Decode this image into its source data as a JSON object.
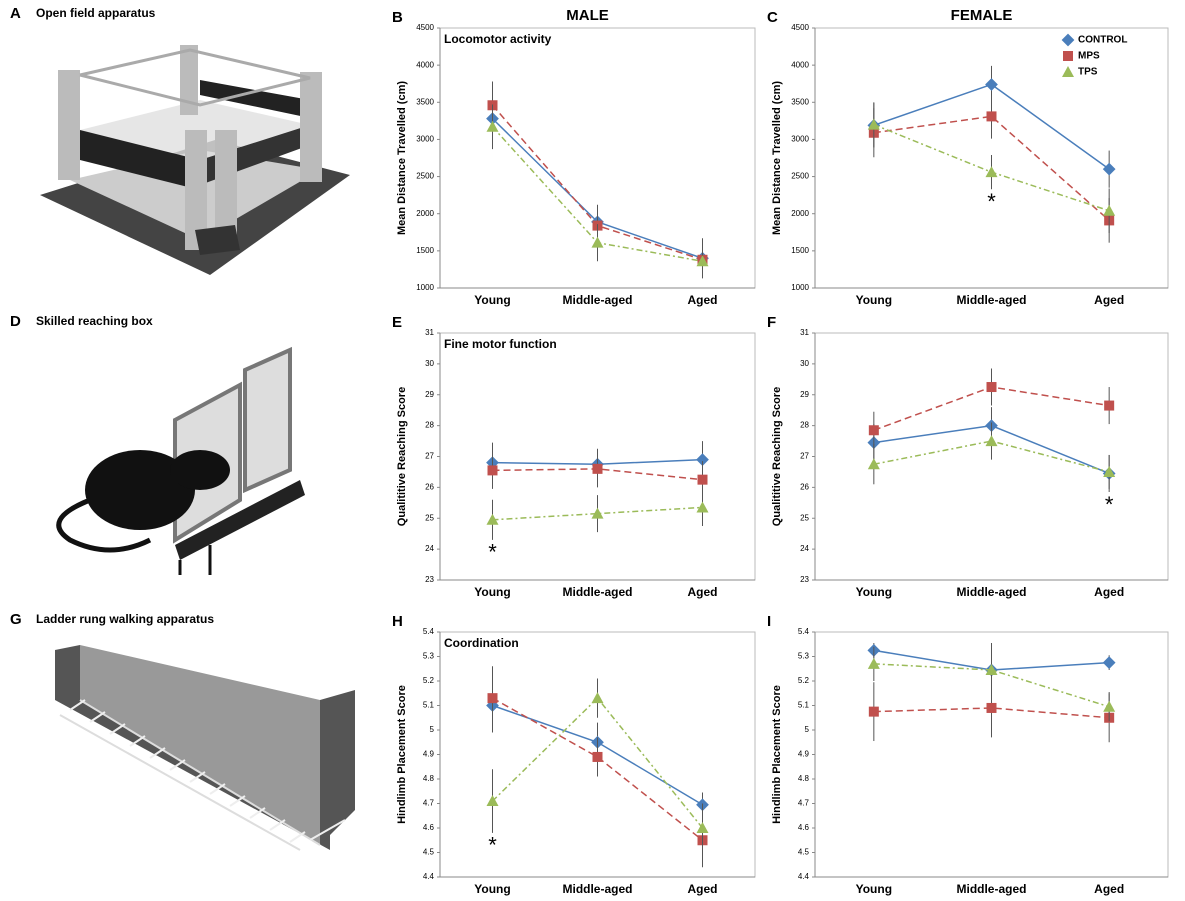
{
  "illustrations": [
    {
      "label": "A",
      "title": "Open field  apparatus"
    },
    {
      "label": "D",
      "title": "Skilled reaching box"
    },
    {
      "label": "G",
      "title": "Ladder rung walking apparatus"
    }
  ],
  "chart_data": [
    {
      "type": "line",
      "panel_label": "B",
      "column_title": "MALE",
      "title": "Locomotor activity",
      "y_label": "Mean  Distance Travelled  (cm)",
      "categories": [
        "Young",
        "Middle-aged",
        "Aged"
      ],
      "ylim": [
        1000,
        4500
      ],
      "yticks": [
        1000,
        1500,
        2000,
        2500,
        3000,
        3500,
        4000,
        4500
      ],
      "series": [
        {
          "color": "#4a7ebb",
          "line_style": "solid",
          "values": [
            3280,
            1890,
            1400
          ],
          "errors": [
            300,
            230,
            270
          ]
        },
        {
          "color": "#c0504d",
          "line_style": "dashed",
          "values": [
            3460,
            1840,
            1380
          ],
          "errors": [
            320,
            240,
            200
          ]
        },
        {
          "color": "#9bbb59",
          "line_style": "dashdot",
          "values": [
            3170,
            1610,
            1360
          ],
          "errors": [
            300,
            250,
            190
          ]
        }
      ],
      "annotations": []
    },
    {
      "type": "line",
      "panel_label": "C",
      "column_title": "FEMALE",
      "y_label": "Mean  Distance Travelled  (cm)",
      "categories": [
        "Young",
        "Middle-aged",
        "Aged"
      ],
      "ylim": [
        1000,
        4500
      ],
      "yticks": [
        1000,
        1500,
        2000,
        2500,
        3000,
        3500,
        4000,
        4500
      ],
      "legend": "upper right",
      "series": [
        {
          "name": "CONTROL",
          "color": "#4a7ebb",
          "line_style": "solid",
          "values": [
            3190,
            3740,
            2600
          ],
          "errors": [
            300,
            250,
            250
          ]
        },
        {
          "name": "MPS",
          "color": "#c0504d",
          "line_style": "dashed",
          "values": [
            3090,
            3310,
            1910
          ],
          "errors": [
            330,
            300,
            300
          ]
        },
        {
          "name": "TPS",
          "color": "#9bbb59",
          "line_style": "dashdot",
          "values": [
            3200,
            2560,
            2040
          ],
          "errors": [
            300,
            230,
            300
          ]
        }
      ],
      "annotations": [
        {
          "text": "*",
          "category": 1
        }
      ]
    },
    {
      "type": "line",
      "panel_label": "E",
      "title": "Fine motor function",
      "y_label": "Qualititive Reaching Score",
      "categories": [
        "Young",
        "Middle-aged",
        "Aged"
      ],
      "ylim": [
        23,
        31
      ],
      "yticks": [
        23,
        24,
        25,
        26,
        27,
        28,
        29,
        30,
        31
      ],
      "series": [
        {
          "color": "#4a7ebb",
          "line_style": "solid",
          "values": [
            26.8,
            26.75,
            26.9
          ],
          "errors": [
            0.65,
            0.5,
            0.6
          ]
        },
        {
          "color": "#c0504d",
          "line_style": "dashed",
          "values": [
            26.55,
            26.6,
            26.25
          ],
          "errors": [
            0.6,
            0.6,
            0.6
          ]
        },
        {
          "color": "#9bbb59",
          "line_style": "dashdot",
          "values": [
            24.95,
            25.15,
            25.35
          ],
          "errors": [
            0.65,
            0.6,
            0.6
          ]
        }
      ],
      "annotations": [
        {
          "text": "*",
          "category": 0
        }
      ]
    },
    {
      "type": "line",
      "panel_label": "F",
      "y_label": "Qualititive Reaching Score",
      "categories": [
        "Young",
        "Middle-aged",
        "Aged"
      ],
      "ylim": [
        23,
        31
      ],
      "yticks": [
        23,
        24,
        25,
        26,
        27,
        28,
        29,
        30,
        31
      ],
      "series": [
        {
          "color": "#4a7ebb",
          "line_style": "solid",
          "values": [
            27.45,
            28.0,
            26.45
          ],
          "errors": [
            0.6,
            0.6,
            0.6
          ]
        },
        {
          "color": "#c0504d",
          "line_style": "dashed",
          "values": [
            27.85,
            29.25,
            28.65
          ],
          "errors": [
            0.6,
            0.6,
            0.6
          ]
        },
        {
          "color": "#9bbb59",
          "line_style": "dashdot",
          "values": [
            26.75,
            27.5,
            26.5
          ],
          "errors": [
            0.65,
            0.6,
            0.55
          ]
        }
      ],
      "annotations": [
        {
          "text": "*",
          "category": 2
        }
      ]
    },
    {
      "type": "line",
      "panel_label": "H",
      "title": "Coordination",
      "y_label": "Hindlimb Placement Score",
      "categories": [
        "Young",
        "Middle-aged",
        "Aged"
      ],
      "ylim": [
        4.4,
        5.4
      ],
      "yticks": [
        4.4,
        4.5,
        4.6,
        4.7,
        4.8,
        4.9,
        5,
        5.1,
        5.2,
        5.3,
        5.4
      ],
      "series": [
        {
          "color": "#4a7ebb",
          "line_style": "solid",
          "values": [
            5.1,
            4.95,
            4.695
          ],
          "errors": [
            0.11,
            0.08,
            0.05
          ]
        },
        {
          "color": "#c0504d",
          "line_style": "dashed",
          "values": [
            5.13,
            4.89,
            4.55
          ],
          "errors": [
            0.13,
            0.08,
            0.11
          ]
        },
        {
          "color": "#9bbb59",
          "line_style": "dashdot",
          "values": [
            4.71,
            5.13,
            4.6
          ],
          "errors": [
            0.13,
            0.08,
            0.1
          ]
        }
      ],
      "annotations": [
        {
          "text": "*",
          "category": 0
        }
      ]
    },
    {
      "type": "line",
      "panel_label": "I",
      "y_label": "Hindlimb Placement Score",
      "categories": [
        "Young",
        "Middle-aged",
        "Aged"
      ],
      "ylim": [
        4.4,
        5.4
      ],
      "yticks": [
        4.4,
        4.5,
        4.6,
        4.7,
        4.8,
        4.9,
        5,
        5.1,
        5.2,
        5.3,
        5.4
      ],
      "series": [
        {
          "color": "#4a7ebb",
          "line_style": "solid",
          "values": [
            5.325,
            5.245,
            5.275
          ],
          "errors": [
            0.03,
            0.11,
            0.03
          ]
        },
        {
          "color": "#c0504d",
          "line_style": "dashed",
          "values": [
            5.075,
            5.09,
            5.05
          ],
          "errors": [
            0.12,
            0.12,
            0.1
          ]
        },
        {
          "color": "#9bbb59",
          "line_style": "dashdot",
          "values": [
            5.27,
            5.245,
            5.095
          ],
          "errors": [
            0.07,
            0.1,
            0.06
          ]
        }
      ],
      "annotations": []
    }
  ]
}
